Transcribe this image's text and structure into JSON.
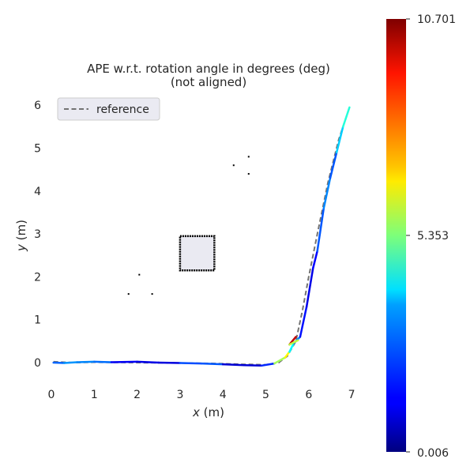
{
  "chart_data": {
    "type": "line",
    "title_line1": "APE w.r.t. rotation angle in degrees (deg)",
    "title_line2": "(not aligned)",
    "xlabel_var": "x",
    "xlabel_unit": " (m)",
    "ylabel_var": "y",
    "ylabel_unit": " (m)",
    "xlim": [
      -0.1,
      7.2
    ],
    "ylim": [
      -0.55,
      6.3
    ],
    "xticks": [
      "0",
      "1",
      "2",
      "3",
      "4",
      "5",
      "6",
      "7"
    ],
    "yticks": [
      "0",
      "1",
      "2",
      "3",
      "4",
      "5",
      "6"
    ],
    "grid": false,
    "legend": {
      "entries": [
        "reference"
      ],
      "position": "top-left"
    },
    "colorbar": {
      "colormap": "jet",
      "min_label": "0.006",
      "mid_label": "5.353",
      "max_label": "10.701",
      "min": 0.006,
      "mid": 5.353,
      "max": 10.701
    },
    "reference": {
      "name": "reference",
      "x": [
        0.05,
        0.5,
        1.0,
        2.0,
        3.0,
        3.8,
        4.5,
        5.0,
        5.3,
        5.5,
        5.7,
        5.85,
        6.0,
        6.2,
        6.45,
        6.7,
        6.95
      ],
      "y": [
        0.02,
        0.0,
        0.01,
        0.0,
        -0.01,
        -0.02,
        -0.04,
        -0.05,
        0.0,
        0.15,
        0.5,
        1.2,
        2.0,
        3.0,
        4.2,
        5.2,
        5.95
      ]
    },
    "estimate": {
      "points": [
        {
          "x": 0.05,
          "y": 0.0,
          "v": 1.0
        },
        {
          "x": 0.3,
          "y": -0.01,
          "v": 3.8
        },
        {
          "x": 0.6,
          "y": 0.01,
          "v": 2.0
        },
        {
          "x": 1.0,
          "y": 0.02,
          "v": 3.5
        },
        {
          "x": 1.4,
          "y": 0.01,
          "v": 1.5
        },
        {
          "x": 2.0,
          "y": 0.02,
          "v": 1.0
        },
        {
          "x": 2.5,
          "y": 0.0,
          "v": 1.2
        },
        {
          "x": 3.0,
          "y": -0.01,
          "v": 0.8
        },
        {
          "x": 3.5,
          "y": -0.02,
          "v": 3.5
        },
        {
          "x": 4.0,
          "y": -0.04,
          "v": 1.0
        },
        {
          "x": 4.5,
          "y": -0.06,
          "v": 0.8
        },
        {
          "x": 4.9,
          "y": -0.07,
          "v": 1.0
        },
        {
          "x": 5.2,
          "y": -0.02,
          "v": 2.5
        },
        {
          "x": 5.45,
          "y": 0.12,
          "v": 9.0
        },
        {
          "x": 5.55,
          "y": 0.25,
          "v": 4.5
        },
        {
          "x": 5.65,
          "y": 0.45,
          "v": 3.5
        },
        {
          "x": 5.8,
          "y": 0.6,
          "v": 2.0
        },
        {
          "x": 5.95,
          "y": 1.3,
          "v": 1.0
        },
        {
          "x": 6.1,
          "y": 2.2,
          "v": 1.2
        },
        {
          "x": 6.2,
          "y": 2.6,
          "v": 1.5
        },
        {
          "x": 6.35,
          "y": 3.6,
          "v": 3.0
        },
        {
          "x": 6.5,
          "y": 4.3,
          "v": 2.5
        },
        {
          "x": 6.65,
          "y": 4.9,
          "v": 2.0
        },
        {
          "x": 6.8,
          "y": 5.5,
          "v": 5.0
        },
        {
          "x": 6.95,
          "y": 5.95,
          "v": 3.8
        }
      ],
      "spurs": [
        {
          "x1": 5.55,
          "y1": 0.42,
          "x2": 5.7,
          "y2": 0.6,
          "v": 10.0
        },
        {
          "x1": 5.55,
          "y1": 0.42,
          "x2": 5.75,
          "y2": 0.52,
          "v": 6.0
        }
      ]
    },
    "map_obstacle": {
      "x0": 3.0,
      "x1": 3.8,
      "y0": 2.15,
      "y1": 2.95
    },
    "map_specks": [
      {
        "x": 4.25,
        "y": 4.6
      },
      {
        "x": 4.6,
        "y": 4.8
      },
      {
        "x": 4.6,
        "y": 4.4
      },
      {
        "x": 2.05,
        "y": 2.05
      },
      {
        "x": 1.8,
        "y": 1.6
      },
      {
        "x": 2.35,
        "y": 1.6
      }
    ]
  }
}
